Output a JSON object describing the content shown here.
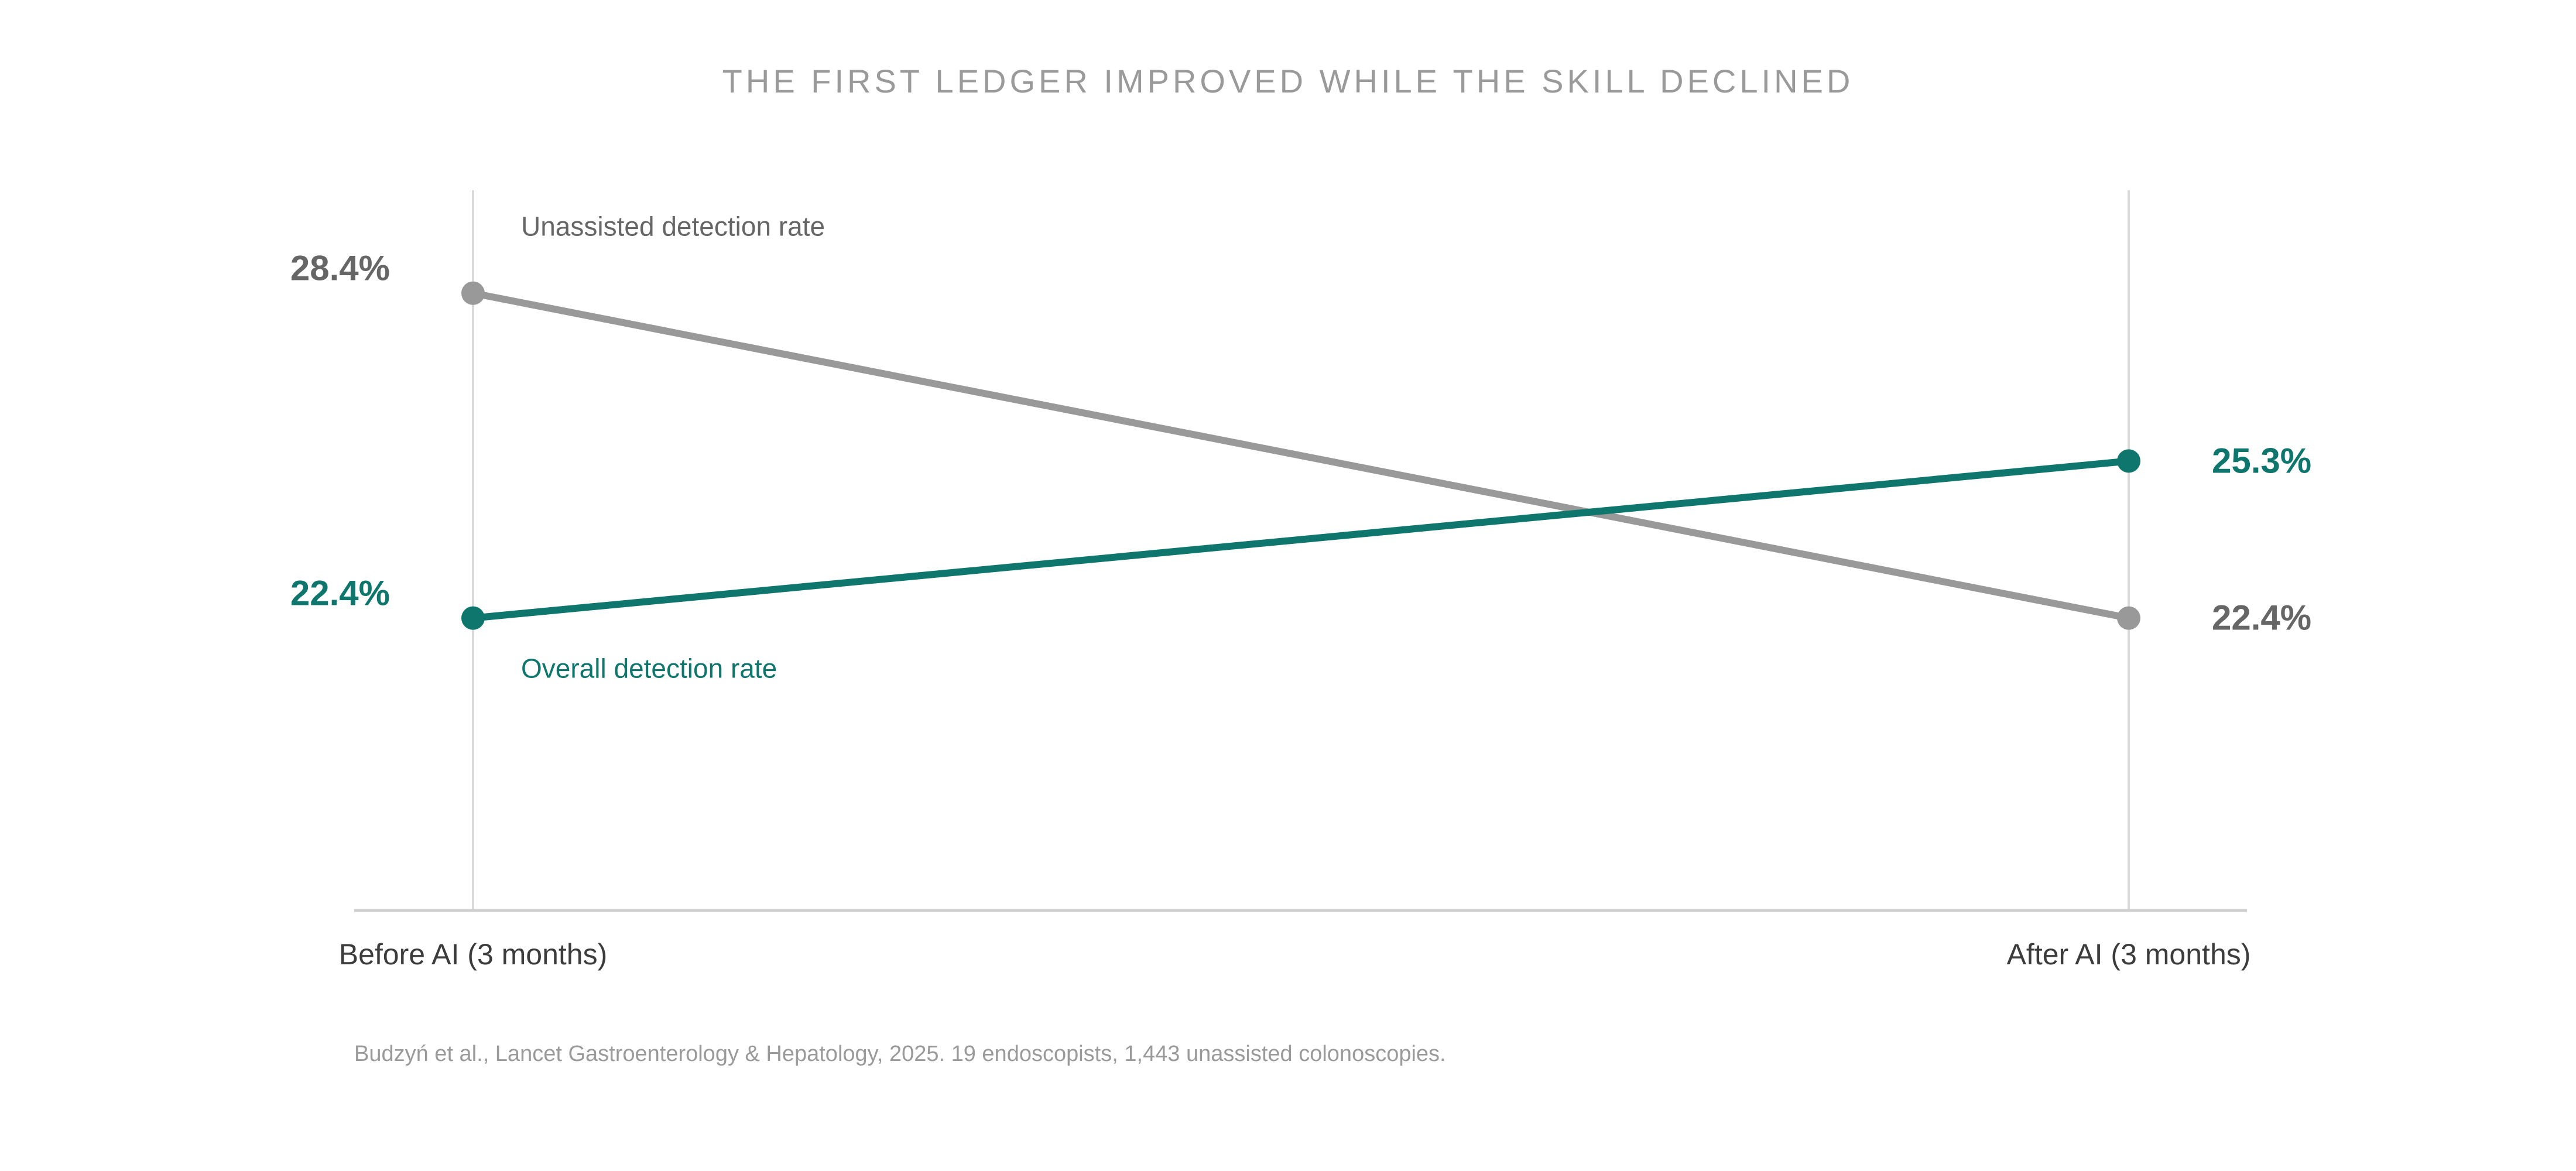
{
  "chart_data": {
    "type": "line",
    "title": "THE FIRST LEDGER IMPROVED WHILE THE SKILL DECLINED",
    "categories": [
      "Before AI (3 months)",
      "After AI (3 months)"
    ],
    "series": [
      {
        "name": "Unassisted detection rate",
        "values": [
          28.4,
          22.4
        ],
        "labels": [
          "28.4%",
          "22.4%"
        ],
        "color": "#999999",
        "label_color": "#666666"
      },
      {
        "name": "Overall detection rate",
        "values": [
          22.4,
          25.3
        ],
        "labels": [
          "22.4%",
          "25.3%"
        ],
        "color": "#0f766e",
        "label_color": "#0f766e"
      }
    ],
    "xlabel": "",
    "ylabel": "",
    "ylim": [
      17,
      30.3
    ],
    "grid": false,
    "source": "Budzyń et al., Lancet Gastroenterology & Hepatology, 2025. 19 endoscopists, 1,443 unassisted colonoscopies."
  }
}
